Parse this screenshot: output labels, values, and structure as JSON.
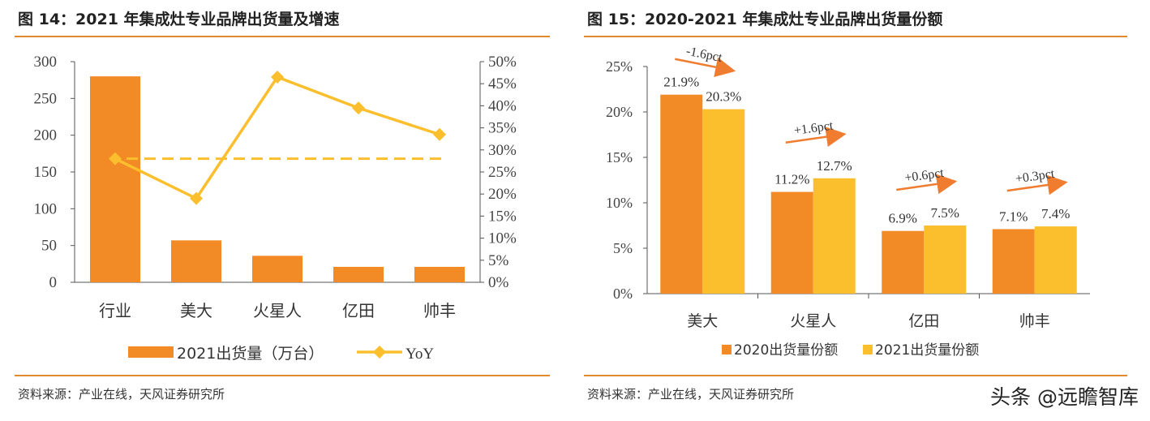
{
  "left": {
    "title": "图 14：2021 年集成灶专业品牌出货量及增速",
    "source": "资料来源：产业在线，天风证券研究所"
  },
  "right": {
    "title": "图 15：2020-2021 年集成灶专业品牌出货量份额",
    "source": "资料来源：产业在线，天风证券研究所"
  },
  "watermark": "头条 @远瞻智库",
  "colors": {
    "orange": "#F28A25",
    "yellow": "#FBBF2E",
    "rule": "#E08A2E",
    "arrow": "#F07C30"
  },
  "chart_data": [
    {
      "type": "bar",
      "categories": [
        "行业",
        "美大",
        "火星人",
        "亿田",
        "帅丰"
      ],
      "series": [
        {
          "name": "2021出货量（万台）",
          "type": "bar",
          "axis": "left",
          "values": [
            280,
            57,
            36,
            21,
            21
          ]
        },
        {
          "name": "YoY",
          "type": "line",
          "axis": "right",
          "values": [
            28,
            19,
            46.5,
            39.5,
            33.5
          ]
        }
      ],
      "reference_line": {
        "axis": "right",
        "value": 28,
        "style": "dashed"
      },
      "yleft": {
        "ticks": [
          "0",
          "50",
          "100",
          "150",
          "200",
          "250",
          "300"
        ],
        "ylim": [
          0,
          300
        ]
      },
      "yright": {
        "ticks": [
          "0%",
          "5%",
          "10%",
          "15%",
          "20%",
          "25%",
          "30%",
          "35%",
          "40%",
          "45%",
          "50%"
        ],
        "ylim": [
          0,
          50
        ]
      },
      "legend_position": "bottom"
    },
    {
      "type": "bar",
      "categories": [
        "美大",
        "火星人",
        "亿田",
        "帅丰"
      ],
      "series": [
        {
          "name": "2020出货量份额",
          "values": [
            21.9,
            11.2,
            6.9,
            7.1
          ],
          "labels": [
            "21.9%",
            "11.2%",
            "6.9%",
            "7.1%"
          ]
        },
        {
          "name": "2021出货量份额",
          "values": [
            20.3,
            12.7,
            7.5,
            7.4
          ],
          "labels": [
            "20.3%",
            "12.7%",
            "7.5%",
            "7.4%"
          ]
        }
      ],
      "annotations": [
        "-1.6pct",
        "+1.6pct",
        "+0.6pct",
        "+0.3pct"
      ],
      "yaxis": {
        "ticks": [
          "0%",
          "5%",
          "10%",
          "15%",
          "20%",
          "25%"
        ],
        "ylim": [
          0,
          25
        ]
      },
      "legend_position": "bottom"
    }
  ]
}
